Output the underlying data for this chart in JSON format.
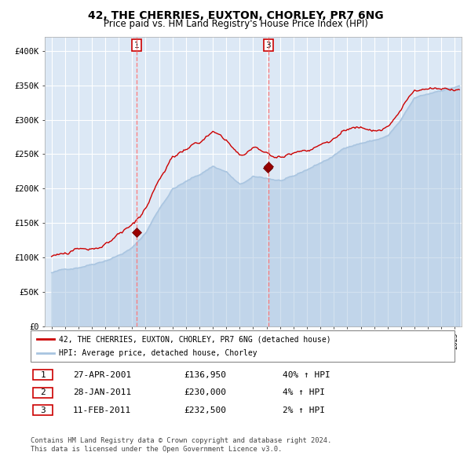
{
  "title": "42, THE CHERRIES, EUXTON, CHORLEY, PR7 6NG",
  "subtitle": "Price paid vs. HM Land Registry's House Price Index (HPI)",
  "legend_line1": "42, THE CHERRIES, EUXTON, CHORLEY, PR7 6NG (detached house)",
  "legend_line2": "HPI: Average price, detached house, Chorley",
  "footer1": "Contains HM Land Registry data © Crown copyright and database right 2024.",
  "footer2": "This data is licensed under the Open Government Licence v3.0.",
  "transactions": [
    {
      "num": 1,
      "date": "27-APR-2001",
      "price": 136950,
      "pct": "40%",
      "dir": "↑"
    },
    {
      "num": 2,
      "date": "28-JAN-2011",
      "price": 230000,
      "pct": "4%",
      "dir": "↑"
    },
    {
      "num": 3,
      "date": "11-FEB-2011",
      "price": 232500,
      "pct": "2%",
      "dir": "↑"
    }
  ],
  "transaction_dates": [
    2001.32,
    2011.08,
    2011.12
  ],
  "transaction_prices": [
    136950,
    230000,
    232500
  ],
  "vline_dates": [
    2001.32,
    2011.12
  ],
  "vline_labels": [
    "1",
    "3"
  ],
  "hpi_color": "#a8c4e0",
  "price_color": "#cc0000",
  "bg_color": "#dce8f5",
  "grid_color": "#ffffff",
  "ylim": [
    0,
    420000
  ],
  "xlim_start": 1994.5,
  "xlim_end": 2025.5
}
